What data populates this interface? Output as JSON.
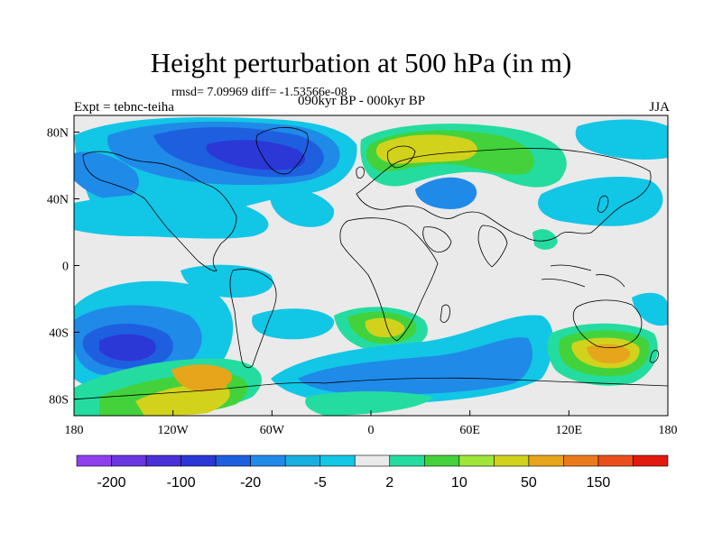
{
  "title": "Height perturbation at 500 hPa (in m)",
  "stats": "rmsd= 7.09969 diff= -1.53566e-08",
  "experiment": "Expt = tebnc-teiha",
  "period": "090kyr BP - 000kyr BP",
  "season": "JJA",
  "axes": {
    "lon_ticks": [
      "180",
      "120W",
      "60W",
      "0",
      "60E",
      "120E",
      "180"
    ],
    "lat_ticks": [
      "80N",
      "40N",
      "0",
      "40S",
      "80S"
    ]
  },
  "colorbar": {
    "colors": [
      "#8f3ff0",
      "#6b35e2",
      "#4a30d8",
      "#2b38d6",
      "#1e5fe0",
      "#1f8ae8",
      "#17aee0",
      "#12c6e6",
      "#eaeaea",
      "#24dca0",
      "#43d23b",
      "#9ee63a",
      "#d2d21c",
      "#e6a51a",
      "#ec7a1c",
      "#eb4e1c",
      "#e2190f"
    ],
    "labels": [
      "-200",
      "-100",
      "-20",
      "-5",
      "2",
      "10",
      "50",
      "150"
    ]
  },
  "field_colors": {
    "background": "#eaeaea",
    "neg_light": "#12c6e6",
    "neg_mid": "#1f8ae8",
    "neg_strong": "#1e5fe0",
    "neg_deep": "#2b38d6",
    "pos_light": "#24dca0",
    "pos_mid": "#43d23b",
    "pos_yellow": "#d2d21c",
    "pos_orange": "#e6a51a",
    "land_outline": "#000000"
  }
}
